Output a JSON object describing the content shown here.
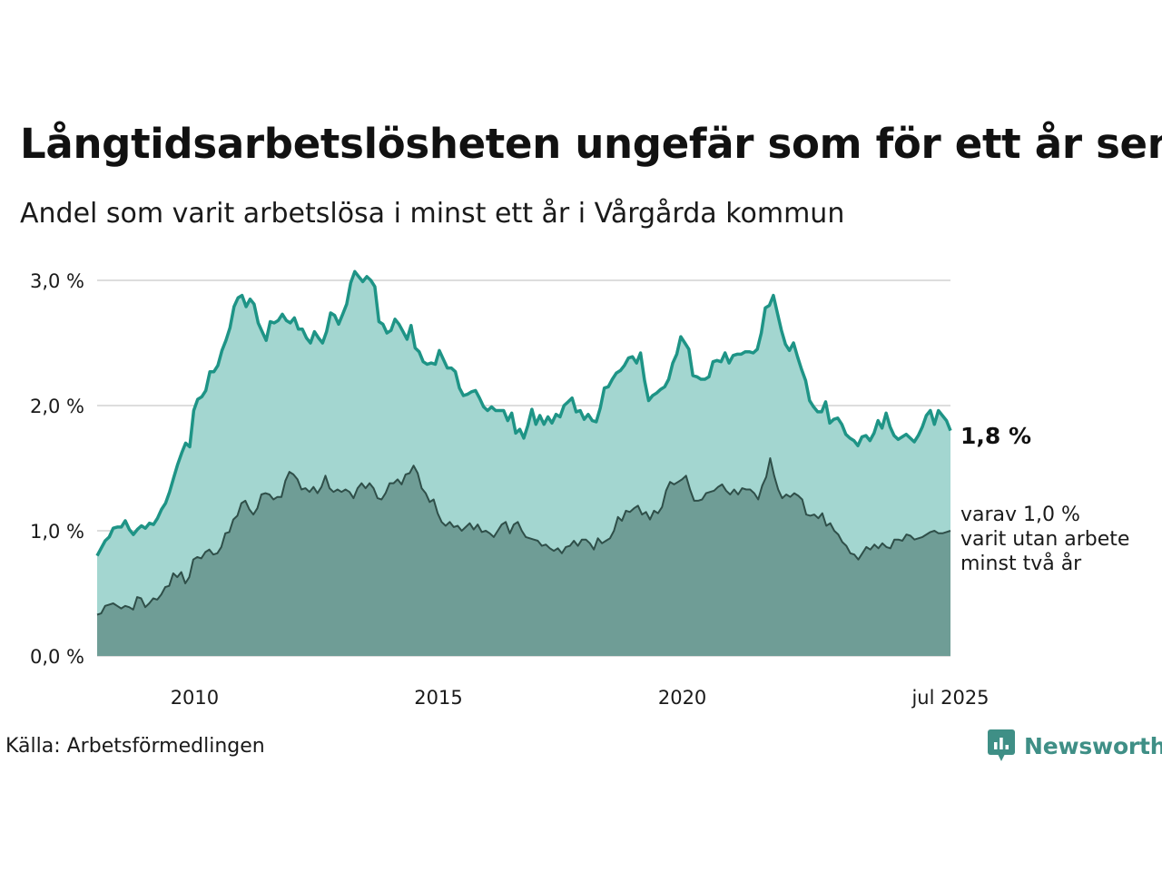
{
  "title": "Långtidsarbetslösheten ungefär som för ett år sen",
  "subtitle": "Andel som varit arbetslösa i minst ett år i Vårgårda kommun",
  "source": "Källa: Arbetsförmedlingen",
  "brand": "Newsworthy",
  "colors": {
    "series_total_line": "#1e9486",
    "series_total_fill": "#a3d6d0",
    "series_long_line": "#2f4f49",
    "series_long_fill": "#6f9d96",
    "grid": "#dddddd",
    "brand": "#3f8f86"
  },
  "chart_data": {
    "type": "area",
    "x_start": "2008-01",
    "x_end": "2025-07",
    "ylim": [
      0,
      3.0
    ],
    "yticks": [
      0,
      1,
      2,
      3
    ],
    "ytick_labels": [
      "0,0 %",
      "1,0 %",
      "2,0 %",
      "3,0 %"
    ],
    "xticks": [
      "2010",
      "2015",
      "2020",
      "jul 2025"
    ],
    "grid": true,
    "series": [
      {
        "values": [
          0.8,
          0.86,
          0.92,
          0.95,
          1.02,
          1.03,
          1.03,
          1.08,
          1.01,
          0.97,
          1.01,
          1.04,
          1.02,
          1.06,
          1.05,
          1.1,
          1.17,
          1.22,
          1.31,
          1.42,
          1.53,
          1.62,
          1.7,
          1.67,
          1.96,
          2.05,
          2.07,
          2.12,
          2.27,
          2.27,
          2.32,
          2.44,
          2.52,
          2.62,
          2.79,
          2.86,
          2.88,
          2.79,
          2.85,
          2.81,
          2.66,
          2.59,
          2.52,
          2.67,
          2.66,
          2.68,
          2.73,
          2.68,
          2.66,
          2.7,
          2.61,
          2.61,
          2.54,
          2.5,
          2.59,
          2.54,
          2.5,
          2.59,
          2.74,
          2.72,
          2.65,
          2.73,
          2.81,
          2.98,
          3.07,
          3.03,
          2.99,
          3.03,
          3.0,
          2.95,
          2.67,
          2.65,
          2.58,
          2.6,
          2.69,
          2.65,
          2.59,
          2.53,
          2.64,
          2.46,
          2.43,
          2.35,
          2.33,
          2.34,
          2.33,
          2.44,
          2.37,
          2.3,
          2.3,
          2.27,
          2.14,
          2.08,
          2.09,
          2.11,
          2.12,
          2.06,
          1.99,
          1.96,
          1.99,
          1.96,
          1.96,
          1.96,
          1.88,
          1.94,
          1.78,
          1.81,
          1.74,
          1.84,
          1.97,
          1.85,
          1.92,
          1.85,
          1.91,
          1.86,
          1.93,
          1.91,
          2.0,
          2.03,
          2.06,
          1.95,
          1.96,
          1.89,
          1.93,
          1.88,
          1.87,
          1.98,
          2.14,
          2.15,
          2.21,
          2.26,
          2.28,
          2.32,
          2.38,
          2.39,
          2.34,
          2.42,
          2.2,
          2.04,
          2.08,
          2.1,
          2.13,
          2.15,
          2.21,
          2.34,
          2.41,
          2.55,
          2.5,
          2.45,
          2.24,
          2.23,
          2.21,
          2.21,
          2.23,
          2.35,
          2.36,
          2.35,
          2.42,
          2.34,
          2.4,
          2.41,
          2.41,
          2.43,
          2.43,
          2.42,
          2.45,
          2.58,
          2.78,
          2.8,
          2.88,
          2.74,
          2.6,
          2.49,
          2.44,
          2.5,
          2.39,
          2.29,
          2.2,
          2.04,
          1.99,
          1.95,
          1.95,
          2.03,
          1.86,
          1.89,
          1.9,
          1.85,
          1.77,
          1.74,
          1.72,
          1.68,
          1.75,
          1.76,
          1.72,
          1.78,
          1.88,
          1.82,
          1.94,
          1.83,
          1.76,
          1.73,
          1.75,
          1.77,
          1.74,
          1.71,
          1.76,
          1.83,
          1.92,
          1.96,
          1.85,
          1.96,
          1.92,
          1.88,
          1.8
        ]
      },
      {
        "values": [
          0.33,
          0.34,
          0.4,
          0.41,
          0.42,
          0.4,
          0.38,
          0.4,
          0.39,
          0.37,
          0.47,
          0.46,
          0.39,
          0.42,
          0.46,
          0.45,
          0.49,
          0.55,
          0.56,
          0.66,
          0.63,
          0.67,
          0.58,
          0.63,
          0.77,
          0.79,
          0.78,
          0.83,
          0.85,
          0.81,
          0.82,
          0.87,
          0.98,
          0.99,
          1.09,
          1.12,
          1.22,
          1.24,
          1.17,
          1.13,
          1.18,
          1.29,
          1.3,
          1.29,
          1.25,
          1.27,
          1.27,
          1.4,
          1.47,
          1.45,
          1.41,
          1.33,
          1.34,
          1.31,
          1.35,
          1.3,
          1.35,
          1.44,
          1.34,
          1.31,
          1.33,
          1.31,
          1.33,
          1.31,
          1.26,
          1.34,
          1.38,
          1.34,
          1.38,
          1.34,
          1.26,
          1.25,
          1.3,
          1.38,
          1.38,
          1.41,
          1.37,
          1.45,
          1.46,
          1.52,
          1.46,
          1.34,
          1.3,
          1.23,
          1.25,
          1.14,
          1.07,
          1.04,
          1.07,
          1.03,
          1.04,
          1.0,
          1.03,
          1.06,
          1.01,
          1.05,
          0.99,
          1.0,
          0.98,
          0.95,
          1.0,
          1.05,
          1.07,
          0.98,
          1.05,
          1.07,
          1.0,
          0.95,
          0.94,
          0.93,
          0.92,
          0.88,
          0.89,
          0.86,
          0.84,
          0.86,
          0.82,
          0.87,
          0.88,
          0.92,
          0.88,
          0.93,
          0.93,
          0.9,
          0.85,
          0.94,
          0.9,
          0.92,
          0.94,
          1.0,
          1.11,
          1.08,
          1.16,
          1.15,
          1.18,
          1.2,
          1.13,
          1.15,
          1.09,
          1.16,
          1.14,
          1.19,
          1.32,
          1.39,
          1.37,
          1.39,
          1.41,
          1.44,
          1.33,
          1.24,
          1.24,
          1.25,
          1.3,
          1.31,
          1.32,
          1.35,
          1.37,
          1.32,
          1.29,
          1.33,
          1.29,
          1.34,
          1.33,
          1.33,
          1.3,
          1.25,
          1.36,
          1.43,
          1.58,
          1.44,
          1.33,
          1.26,
          1.29,
          1.27,
          1.3,
          1.28,
          1.25,
          1.13,
          1.12,
          1.13,
          1.1,
          1.14,
          1.04,
          1.06,
          1.0,
          0.97,
          0.91,
          0.88,
          0.82,
          0.81,
          0.77,
          0.82,
          0.87,
          0.85,
          0.89,
          0.86,
          0.9,
          0.87,
          0.86,
          0.93,
          0.93,
          0.92,
          0.97,
          0.96,
          0.93,
          0.94,
          0.95,
          0.97,
          0.99,
          1.0,
          0.98,
          0.98,
          0.99,
          1.0
        ]
      }
    ],
    "annotations": {
      "total_end": "1,8 %",
      "long_end_lines": [
        "varav 1,0 %",
        "varit utan arbete",
        "minst två år"
      ]
    }
  }
}
